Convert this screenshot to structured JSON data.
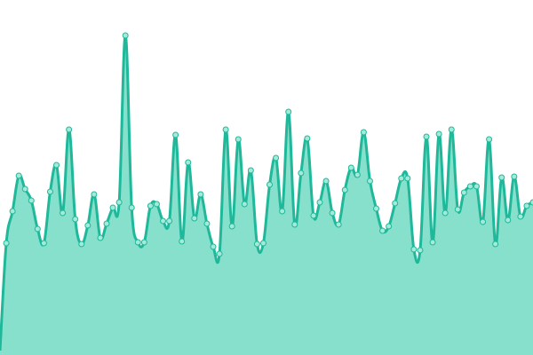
{
  "chart_data": {
    "type": "area",
    "values": [
      5,
      126,
      162,
      202,
      187,
      174,
      142,
      126,
      184,
      214,
      160,
      254,
      153,
      125,
      146,
      181,
      132,
      148,
      166,
      172,
      360,
      166,
      127,
      127,
      168,
      170,
      151,
      151,
      248,
      128,
      217,
      154,
      181,
      148,
      122,
      114,
      254,
      145,
      243,
      170,
      208,
      125,
      126,
      192,
      222,
      162,
      274,
      147,
      205,
      244,
      157,
      172,
      196,
      160,
      147,
      186,
      211,
      203,
      251,
      196,
      165,
      140,
      145,
      171,
      199,
      199,
      119,
      118,
      246,
      127,
      249,
      160,
      254,
      164,
      183,
      190,
      190,
      150,
      243,
      125,
      200,
      152,
      201,
      156,
      168,
      172
    ],
    "ylim": [
      0,
      400
    ],
    "line_color": "#1fb89a",
    "fill_color": "#87e0cc",
    "marker_color": "#a3ead9"
  }
}
